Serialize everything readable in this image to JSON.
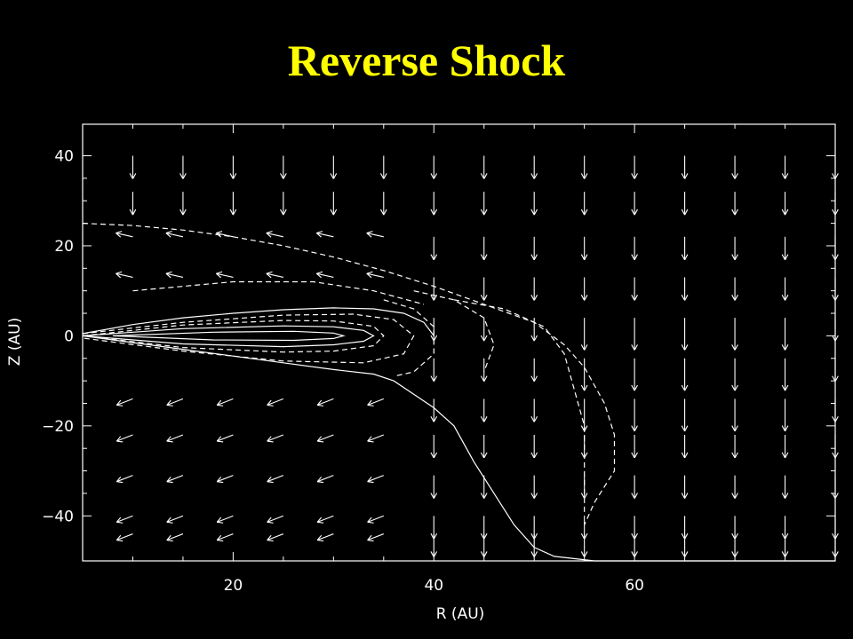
{
  "slide": {
    "title": "Reverse Shock",
    "title_color": "#ffff00",
    "background": "#000000"
  },
  "chart_data": {
    "type": "vector-field",
    "title": "",
    "xlabel": "R (AU)",
    "ylabel": "Z (AU)",
    "xlim": [
      5,
      80
    ],
    "ylim": [
      -50,
      47
    ],
    "xticks": [
      20,
      40,
      60
    ],
    "yticks": [
      40,
      20,
      0,
      -20,
      -40
    ],
    "tick_labels_x": [
      "20",
      "40",
      "60"
    ],
    "tick_labels_y": [
      "40",
      "20",
      "0",
      "−20",
      "−40"
    ],
    "grid": false,
    "colors": {
      "foreground": "#ffffff"
    },
    "vector_grid": {
      "columns_r": [
        10,
        15,
        20,
        25,
        30,
        35,
        40,
        45,
        50,
        55,
        60,
        65,
        70,
        75,
        80
      ],
      "rows_z": [
        40,
        32,
        22,
        13,
        4,
        -5,
        -14,
        -22,
        -31,
        -40,
        -44
      ]
    },
    "outer_boundary_dashed": [
      [
        5,
        25
      ],
      [
        10,
        24.5
      ],
      [
        15,
        23.5
      ],
      [
        20,
        22
      ],
      [
        25,
        20
      ],
      [
        30,
        17.5
      ],
      [
        35,
        14.5
      ],
      [
        40,
        11
      ],
      [
        45,
        7
      ],
      [
        50,
        3
      ],
      [
        53,
        -2
      ],
      [
        55,
        -7
      ],
      [
        57,
        -15
      ],
      [
        58,
        -22
      ],
      [
        58,
        -30
      ],
      [
        56,
        -37
      ],
      [
        55,
        -42
      ]
    ],
    "disk_upper_solid": [
      [
        5,
        0.5
      ],
      [
        10,
        2.5
      ],
      [
        15,
        4
      ],
      [
        20,
        5
      ],
      [
        25,
        5.8
      ],
      [
        30,
        6.2
      ],
      [
        34,
        6
      ],
      [
        37,
        5
      ],
      [
        39,
        3
      ],
      [
        40,
        0
      ]
    ],
    "disk_lower_solid": [
      [
        5,
        0
      ],
      [
        10,
        -1.5
      ],
      [
        15,
        -3
      ],
      [
        20,
        -4.5
      ],
      [
        25,
        -6
      ],
      [
        30,
        -7.5
      ],
      [
        34,
        -8.5
      ],
      [
        36,
        -10
      ],
      [
        38,
        -13
      ],
      [
        40,
        -16
      ],
      [
        42,
        -20
      ],
      [
        44,
        -28
      ],
      [
        46,
        -35
      ],
      [
        48,
        -42
      ],
      [
        50,
        -47
      ],
      [
        52,
        -49
      ],
      [
        56,
        -50
      ],
      [
        80,
        -50
      ]
    ],
    "contours": [
      {
        "style": "dashed",
        "points": [
          [
            5,
            0
          ],
          [
            15,
            2.4
          ],
          [
            25,
            3.4
          ],
          [
            30,
            3.3
          ],
          [
            34,
            2.1
          ],
          [
            35,
            0
          ],
          [
            34,
            -2.2
          ],
          [
            30,
            -3.4
          ],
          [
            25,
            -3.6
          ],
          [
            15,
            -2.6
          ],
          [
            5,
            0
          ]
        ]
      },
      {
        "style": "solid",
        "points": [
          [
            5,
            0
          ],
          [
            15,
            1.6
          ],
          [
            25,
            2.2
          ],
          [
            30,
            2
          ],
          [
            33,
            1.2
          ],
          [
            34,
            0
          ],
          [
            33,
            -1.2
          ],
          [
            30,
            -2
          ],
          [
            25,
            -2.4
          ],
          [
            15,
            -1.8
          ],
          [
            5,
            0
          ]
        ]
      },
      {
        "style": "solid",
        "points": [
          [
            8,
            0
          ],
          [
            18,
            0.8
          ],
          [
            26,
            1
          ],
          [
            30,
            0.6
          ],
          [
            31,
            0
          ],
          [
            30,
            -0.6
          ],
          [
            26,
            -1
          ],
          [
            18,
            -0.9
          ],
          [
            8,
            0
          ]
        ]
      },
      {
        "style": "dashed",
        "points": [
          [
            5,
            0.5
          ],
          [
            15,
            3
          ],
          [
            25,
            4.6
          ],
          [
            32,
            4.8
          ],
          [
            36,
            3.6
          ],
          [
            38,
            0
          ],
          [
            37,
            -4
          ],
          [
            33,
            -6
          ],
          [
            25,
            -5.6
          ],
          [
            15,
            -3.4
          ],
          [
            5,
            -0.5
          ]
        ]
      },
      {
        "style": "dashed",
        "points": [
          [
            35,
            8
          ],
          [
            38,
            6
          ],
          [
            40,
            2
          ],
          [
            40,
            -4
          ],
          [
            38,
            -8
          ],
          [
            36,
            -9
          ]
        ]
      },
      {
        "style": "dashed",
        "points": [
          [
            38,
            10
          ],
          [
            42,
            8
          ],
          [
            45,
            4
          ],
          [
            46,
            -2
          ],
          [
            45,
            -8
          ]
        ]
      },
      {
        "style": "dashed",
        "points": [
          [
            42,
            8
          ],
          [
            47,
            6
          ],
          [
            51,
            2
          ],
          [
            53,
            -4
          ],
          [
            54,
            -12
          ],
          [
            55,
            -20
          ],
          [
            55,
            -30
          ],
          [
            55,
            -40
          ]
        ]
      },
      {
        "style": "dashed",
        "points": [
          [
            10,
            10
          ],
          [
            20,
            12
          ],
          [
            28,
            12
          ],
          [
            34,
            10
          ],
          [
            39,
            7
          ]
        ]
      }
    ]
  }
}
